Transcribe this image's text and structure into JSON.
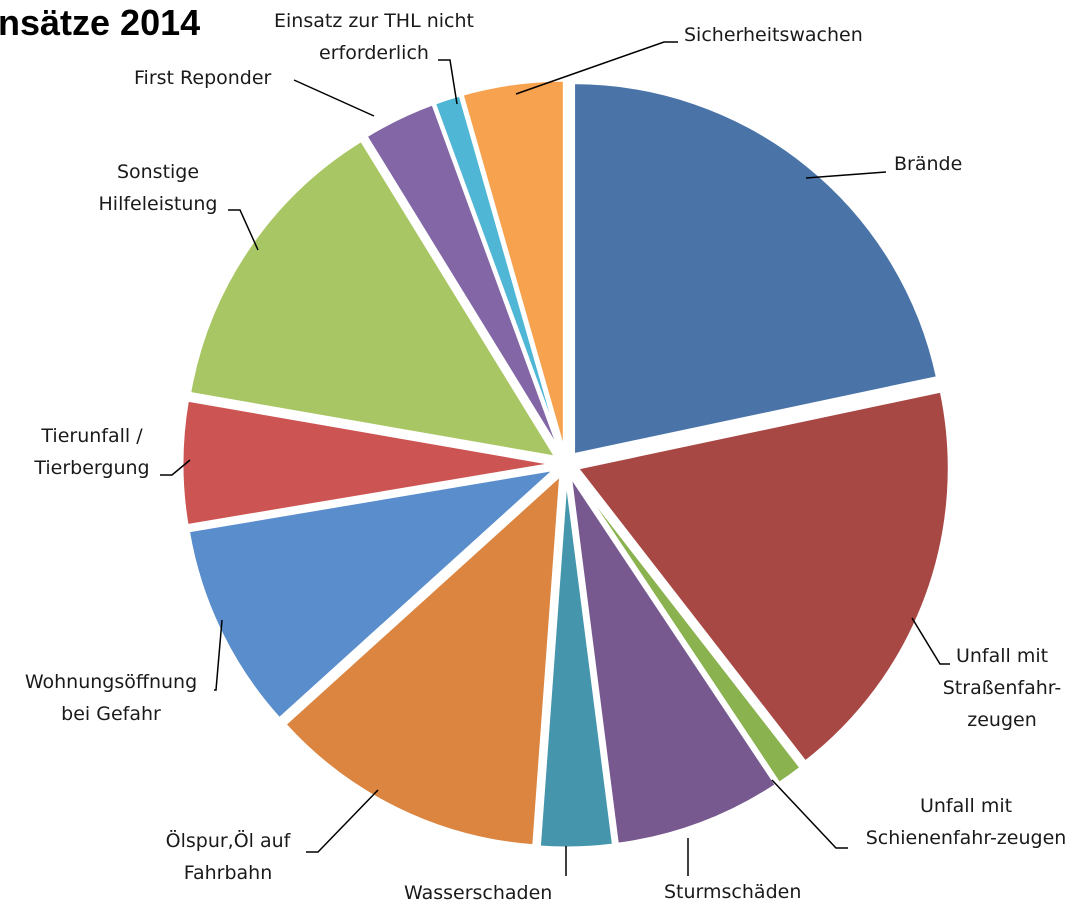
{
  "chart_data": {
    "type": "pie",
    "title": "nsätze 2014",
    "slices": [
      {
        "label": [
          "Brände"
        ],
        "value": 22.5,
        "color": "#4a74a8"
      },
      {
        "label": [
          "Unfall mit",
          "Straßenfahr-",
          "zeugen"
        ],
        "value": 18.5,
        "color": "#a84845"
      },
      {
        "label": [
          "Unfall mit",
          "Schienenfahr-zeugen"
        ],
        "value": 1.2,
        "color": "#8ab24e"
      },
      {
        "label": [
          "Sturmschäden"
        ],
        "value": 7.6,
        "color": "#77598f"
      },
      {
        "label": [
          "Wasserschaden"
        ],
        "value": 3.3,
        "color": "#4596ad"
      },
      {
        "label": [
          "Ölspur,Öl auf",
          "Fahrbahn"
        ],
        "value": 12.6,
        "color": "#db8540"
      },
      {
        "label": [
          "Wohnungsöffnung",
          "bei Gefahr"
        ],
        "value": 9.4,
        "color": "#5a8dcb"
      },
      {
        "label": [
          "Tierunfall /",
          "Tierbergung"
        ],
        "value": 5.6,
        "color": "#cc5553"
      },
      {
        "label": [
          "Sonstige",
          "Hilfeleistung"
        ],
        "value": 14.0,
        "color": "#a8c663"
      },
      {
        "label": [
          "First Reponder"
        ],
        "value": 3.3,
        "color": "#8266a6"
      },
      {
        "label": [
          "Einsatz zur THL nicht",
          "erforderlich"
        ],
        "value": 1.2,
        "color": "#4fb6d6"
      },
      {
        "label": [
          "Sicherheitswachen"
        ],
        "value": 4.6,
        "color": "#f6a24f"
      }
    ]
  }
}
